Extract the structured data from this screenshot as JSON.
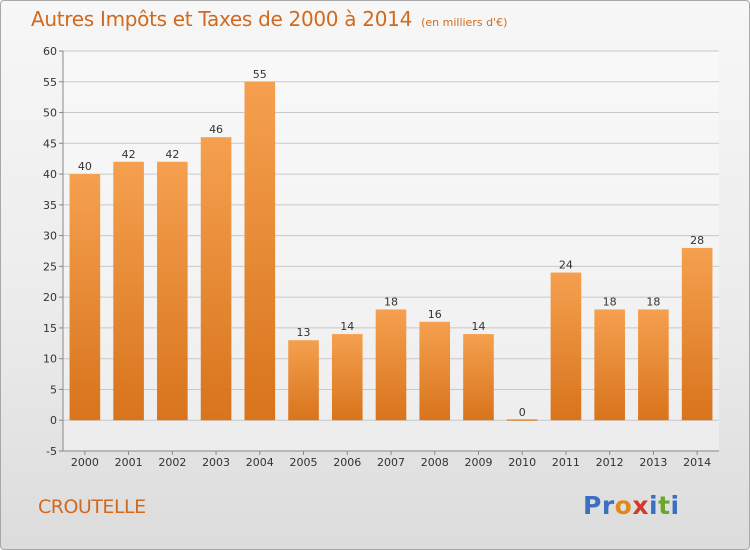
{
  "header": {
    "title": "Autres Impôts et Taxes de 2000 à 2014",
    "unit": "(en milliers d'€)"
  },
  "footer": {
    "place": "CROUTELLE",
    "logo": [
      "P",
      "r",
      "o",
      "x",
      "i",
      "t",
      "i"
    ]
  },
  "colors": {
    "title": "#d2691e",
    "bar_top": "#f5a04f",
    "bar_bottom": "#d8741c",
    "logo": [
      "#3a6fc1",
      "#3a6fc1",
      "#e08a1e",
      "#d23a2a",
      "#3a6fc1",
      "#6aa82c",
      "#3a6fc1"
    ]
  },
  "chart_data": {
    "type": "bar",
    "title": "Autres Impôts et Taxes de 2000 à 2014",
    "subtitle": "(en milliers d'€)",
    "xlabel": "",
    "ylabel": "",
    "categories": [
      "2000",
      "2001",
      "2002",
      "2003",
      "2004",
      "2005",
      "2006",
      "2007",
      "2008",
      "2009",
      "2010",
      "2011",
      "2012",
      "2013",
      "2014"
    ],
    "values": [
      40,
      42,
      42,
      46,
      55,
      13,
      14,
      18,
      16,
      14,
      0,
      24,
      18,
      18,
      28
    ],
    "ylim": [
      -5,
      60
    ],
    "yticks": [
      -5,
      0,
      5,
      10,
      15,
      20,
      25,
      30,
      35,
      40,
      45,
      50,
      55,
      60
    ],
    "grid": true,
    "legend": "none"
  }
}
